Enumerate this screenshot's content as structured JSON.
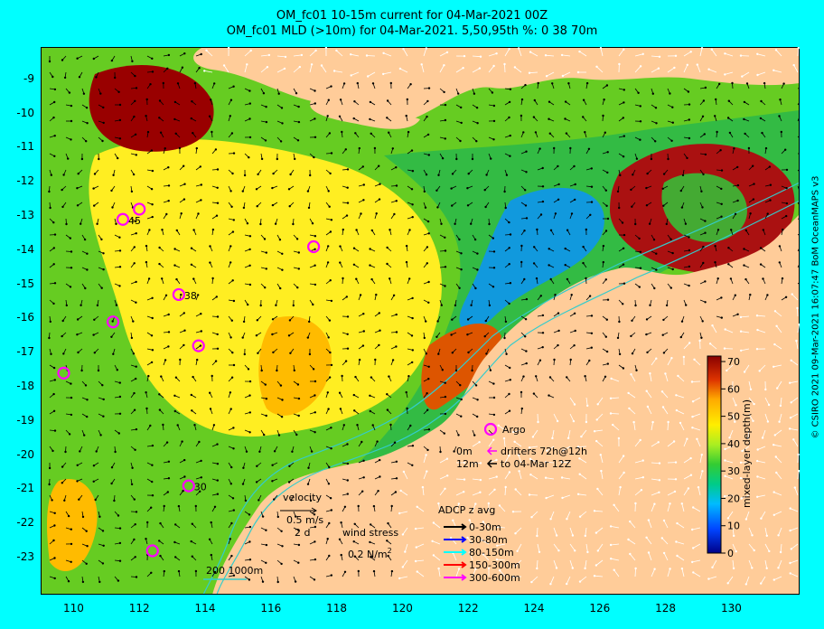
{
  "title_line1": "OM_fc01 10-15m current for 04-Mar-2021 00Z",
  "title_line2": "OM_fc01 MLD (>10m) for 04-Mar-2021. 5,50,95th %: 0  38  70m",
  "credit": "© CSIRO 2021  09-Mar-2021 16:07:47 BoM OceanMAPS v3",
  "axes": {
    "lon_ticks": [
      "110",
      "112",
      "114",
      "116",
      "118",
      "120",
      "122",
      "124",
      "126",
      "128",
      "130"
    ],
    "lat_ticks": [
      "-9",
      "-10",
      "-11",
      "-12",
      "-13",
      "-14",
      "-15",
      "-16",
      "-17",
      "-18",
      "-19",
      "-20",
      "-21",
      "-22",
      "-23"
    ]
  },
  "colorbar": {
    "label": "mixed-layer depth(m)",
    "ticks": [
      "0",
      "10",
      "20",
      "30",
      "40",
      "50",
      "60",
      "70"
    ],
    "min": 0,
    "max": 72
  },
  "legend": {
    "argo": "Argo",
    "drifter_depth_1": "0m",
    "drifter_text_1": "drifters 72h@12h",
    "drifter_depth_2": "12m",
    "drifter_text_2": "to 04-Mar 12Z",
    "velocity_label": "velocity",
    "velocity_scale": "0.5 m/s",
    "velocity_days": "2 d",
    "wind_stress_label": "wind stress",
    "wind_stress_value": "0.2 N/m",
    "wind_stress_exp": "2",
    "adcp_title": "ADCP z avg",
    "adcp": [
      {
        "label": "0-30m",
        "color": "#000000"
      },
      {
        "label": "30-80m",
        "color": "#0000ff"
      },
      {
        "label": "80-150m",
        "color": "#00ffff"
      },
      {
        "label": "150-300m",
        "color": "#ff0000"
      },
      {
        "label": "300-600m",
        "color": "#ff00ff"
      }
    ],
    "isobaths": "200  1000m"
  },
  "argo_floats": [
    {
      "lon": 112.0,
      "lat": -12.8,
      "label": ""
    },
    {
      "lon": 111.5,
      "lat": -13.1,
      "label": "45"
    },
    {
      "lon": 117.3,
      "lat": -13.9,
      "label": ""
    },
    {
      "lon": 113.2,
      "lat": -15.3,
      "label": "38"
    },
    {
      "lon": 111.2,
      "lat": -16.1,
      "label": ""
    },
    {
      "lon": 113.8,
      "lat": -16.8,
      "label": ""
    },
    {
      "lon": 109.7,
      "lat": -17.6,
      "label": ""
    },
    {
      "lon": 113.5,
      "lat": -20.9,
      "label": "30"
    },
    {
      "lon": 112.4,
      "lat": -22.8,
      "label": ""
    }
  ],
  "colors": {
    "land": "#ffcc99",
    "background": "#00ffff",
    "argo": "#ff00ff",
    "isobath": "#33cccc"
  }
}
